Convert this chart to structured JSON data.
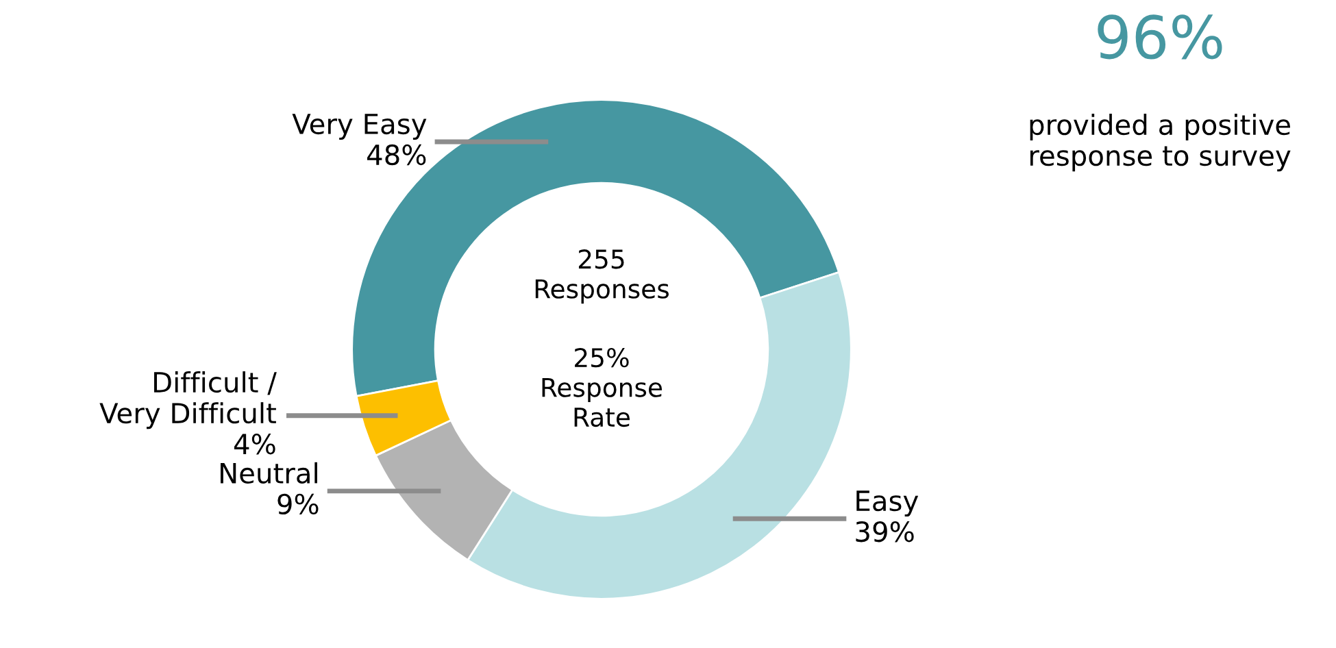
{
  "chart_data": {
    "type": "donut",
    "categories": [
      "Very Easy",
      "Easy",
      "Neutral",
      "Difficult /\nVery Difficult"
    ],
    "values": [
      48,
      39,
      9,
      4
    ],
    "value_labels": [
      "48%",
      "39%",
      "9%",
      "4%"
    ],
    "colors": [
      "#4697a1",
      "#b9e0e3",
      "#b3b3b3",
      "#fdbf00"
    ],
    "annotations": [
      "96%",
      "provided a positive\nresponse to survey",
      "255\nResponses",
      "25%\nResponse\nRate"
    ]
  }
}
